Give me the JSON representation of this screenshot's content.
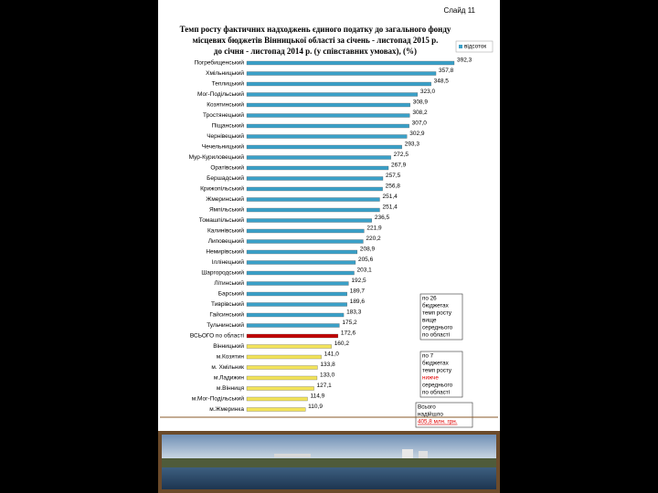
{
  "slide_number": "Слайд 11",
  "chart_data": {
    "type": "hbar",
    "title": [
      "Темп росту фактичних надходжень єдиного податку до загального фонду",
      "місцевих бюджетів Вінницької області за січень - листопад 2015 р.",
      "до січня - листопад 2014 р.  (у співставних умовах),  (%)"
    ],
    "categories": [
      "Погребищенський",
      "Хмільницький",
      "Теплицький",
      "Мог-Подільський",
      "Козятинський",
      "Тростянецький",
      "Піщанський",
      "Чернівецький",
      "Чечельницький",
      "Мур-Куриловецький",
      "Оратівський",
      "Бершадський",
      "Крижопільський",
      "Жмеринський",
      "Ямпільський",
      "Томашпільський",
      "Калинівський",
      "Липовецький",
      "Немирівський",
      "Іллінецький",
      "Шаргородський",
      "Літинський",
      "Барський",
      "Тиврівський",
      "Гайсинський",
      "Тульчинський",
      "ВСЬОГО по області",
      "Вінницький",
      "м.Козятин",
      "м. Хмільник",
      "м.Ладижин",
      "м.Вінниця",
      "м.Мог-Подільський",
      "м.Жмеринка"
    ],
    "series": [
      {
        "name": "відсоток",
        "color": "#3aa0c8",
        "values": [
          392.3,
          357.8,
          348.5,
          323.0,
          308.9,
          308.2,
          307.0,
          302.9,
          293.3,
          272.5,
          267.9,
          257.5,
          256.8,
          251.4,
          251.4,
          236.5,
          221.9,
          220.2,
          208.9,
          205.6,
          203.1,
          192.5,
          189.7,
          189.6,
          183.3,
          175.2,
          172.6,
          160.2,
          141.0,
          133.8,
          133.0,
          127.1,
          114.9,
          110.9
        ],
        "value_labels": [
          "392,3",
          "357,8",
          "348,5",
          "323,0",
          "308,9",
          "308,2",
          "307,0",
          "302,9",
          "293,3",
          "272,5",
          "267,9",
          "257,5",
          "256,8",
          "251,4",
          "251,4",
          "236,5",
          "221,9",
          "220,2",
          "208,9",
          "205,6",
          "203,1",
          "192,5",
          "189,7",
          "189,6",
          "183,3",
          "175,2",
          "172,6",
          "160,2",
          "141,0",
          "133,8",
          "133,0",
          "127,1",
          "114,9",
          "110,9"
        ],
        "colors": [
          "#3aa0c8",
          "#3aa0c8",
          "#3aa0c8",
          "#3aa0c8",
          "#3aa0c8",
          "#3aa0c8",
          "#3aa0c8",
          "#3aa0c8",
          "#3aa0c8",
          "#3aa0c8",
          "#3aa0c8",
          "#3aa0c8",
          "#3aa0c8",
          "#3aa0c8",
          "#3aa0c8",
          "#3aa0c8",
          "#3aa0c8",
          "#3aa0c8",
          "#3aa0c8",
          "#3aa0c8",
          "#3aa0c8",
          "#3aa0c8",
          "#3aa0c8",
          "#3aa0c8",
          "#3aa0c8",
          "#3aa0c8",
          "#c00000",
          "#f2e35a",
          "#f2e35a",
          "#f2e35a",
          "#f2e35a",
          "#f2e35a",
          "#f2e35a",
          "#f2e35a"
        ]
      }
    ],
    "legend": "top-right",
    "annotations": [
      [
        "по 26",
        "бюджетах",
        "темп росту",
        "вище",
        "середнього",
        "по області"
      ],
      [
        "по 7",
        "бюджетах",
        "темп росту",
        "нижче",
        "середнього",
        "по області"
      ],
      [
        "Всього",
        "надійшло",
        "405,8 млн. грн."
      ]
    ]
  }
}
